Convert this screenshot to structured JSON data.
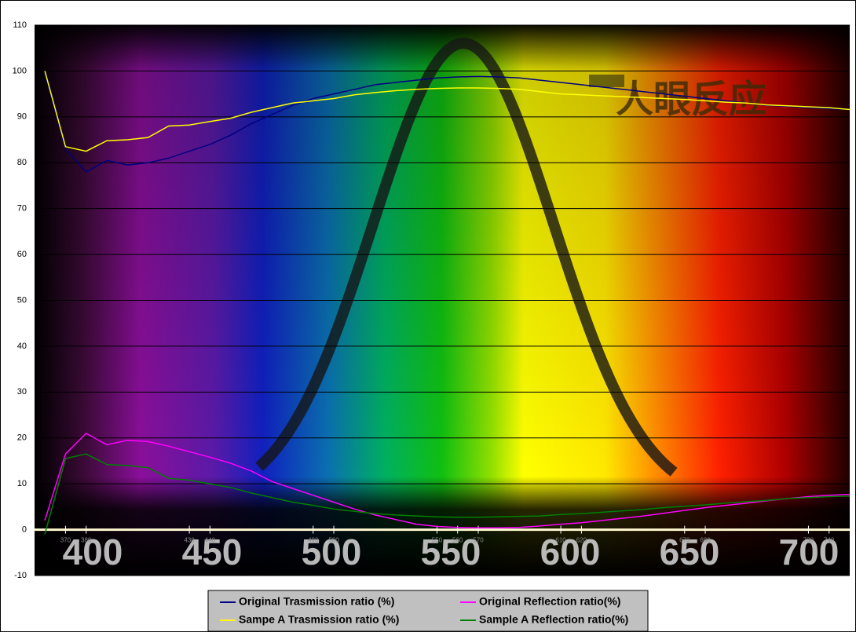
{
  "chart_data": {
    "type": "line",
    "x": [
      360,
      370,
      380,
      390,
      400,
      410,
      420,
      430,
      440,
      450,
      460,
      470,
      480,
      490,
      500,
      510,
      520,
      530,
      540,
      550,
      560,
      570,
      580,
      590,
      600,
      610,
      620,
      630,
      640,
      650,
      660,
      670,
      680,
      690,
      700,
      710,
      720,
      730,
      740,
      750
    ],
    "xlim": [
      355,
      750
    ],
    "xticks": [
      370,
      380,
      430,
      440,
      490,
      500,
      550,
      560,
      570,
      610,
      620,
      670,
      680,
      730,
      740
    ],
    "ylim": [
      -10,
      110
    ],
    "yticks": [
      -10,
      0,
      10,
      20,
      30,
      40,
      50,
      60,
      70,
      80,
      90,
      100,
      110
    ],
    "grid": true,
    "spectrum_labels": [
      400,
      450,
      500,
      550,
      600,
      650,
      700
    ],
    "annotation": "人眼反应",
    "legend": "bottom",
    "series": [
      {
        "name": "Original Trasmission ratio (%)",
        "color": "#000080",
        "values": [
          99.5,
          83,
          78,
          80.5,
          79.5,
          80,
          81,
          82.5,
          84,
          86,
          88.5,
          90.5,
          92.5,
          94,
          95,
          96,
          97,
          97.5,
          98,
          98.5,
          98.7,
          98.8,
          98.7,
          98.5,
          98,
          97.5,
          97,
          96.5,
          96,
          95.5,
          95,
          94.5,
          94,
          93.5,
          93,
          92.5,
          92.3,
          92,
          91.8,
          91.6
        ]
      },
      {
        "name": "Original Reflection ratio(%)",
        "color": "#ff00ff",
        "values": [
          2,
          16.5,
          21,
          18.5,
          19.5,
          19.2,
          18.2,
          17,
          15.8,
          14.5,
          12.8,
          10.5,
          9,
          7.5,
          6,
          4.5,
          3.2,
          2.2,
          1.2,
          0.7,
          0.5,
          0.4,
          0.4,
          0.5,
          0.8,
          1.2,
          1.5,
          2,
          2.5,
          3,
          3.6,
          4.2,
          4.8,
          5.3,
          5.8,
          6.3,
          6.8,
          7.2,
          7.5,
          7.7
        ]
      },
      {
        "name": "Sampe A Trasmission ratio (%)",
        "color": "#ffff00",
        "values": [
          100,
          83.5,
          82.5,
          84.8,
          85,
          85.5,
          88,
          88.2,
          89,
          89.7,
          91,
          92,
          93,
          93.5,
          94,
          94.8,
          95.3,
          95.7,
          96,
          96.2,
          96.3,
          96.3,
          96.2,
          96,
          95.5,
          95,
          94.8,
          94.6,
          94.4,
          94.2,
          94,
          93.8,
          93.5,
          93.2,
          93,
          92.6,
          92.4,
          92.2,
          92,
          91.6
        ]
      },
      {
        "name": "Sample A Reflection ratio(%)",
        "color": "#008000",
        "values": [
          -1,
          15.5,
          16.5,
          14.2,
          14,
          13.5,
          11.2,
          10.8,
          10,
          9.2,
          8,
          7,
          6,
          5.3,
          4.5,
          4,
          3.5,
          3.2,
          3,
          2.8,
          2.7,
          2.7,
          2.8,
          2.9,
          3,
          3.3,
          3.5,
          3.8,
          4.1,
          4.4,
          4.8,
          5.1,
          5.4,
          5.8,
          6.1,
          6.4,
          6.8,
          7,
          7.2,
          7.3
        ]
      }
    ]
  }
}
